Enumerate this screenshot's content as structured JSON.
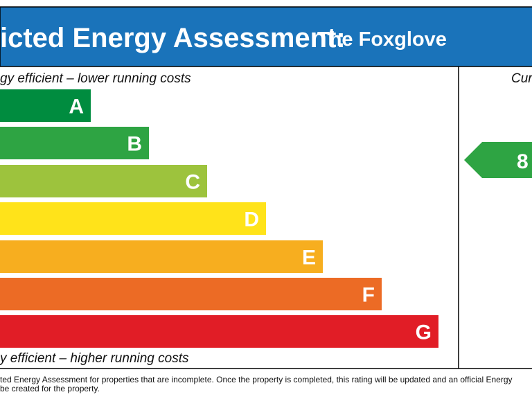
{
  "header": {
    "title": "icted Energy Assessment:",
    "subtitle": "The Foxglove"
  },
  "top_caption": "gy efficient – lower running costs",
  "bottom_caption": "y efficient – higher running costs",
  "bands": [
    {
      "label": "A",
      "color": "#008c3f"
    },
    {
      "label": "B",
      "color": "#2ea443"
    },
    {
      "label": "C",
      "color": "#9dc33d"
    },
    {
      "label": "D",
      "color": "#ffe31a"
    },
    {
      "label": "E",
      "color": "#f7ae1f"
    },
    {
      "label": "F",
      "color": "#ec6b25"
    },
    {
      "label": "G",
      "color": "#e11d26"
    }
  ],
  "current": {
    "heading": "Cur",
    "rating": "8",
    "color": "#2ea443"
  },
  "footer": [
    "ted Energy Assessment for properties that are incomplete. Once the property is completed, this rating will be updated and an official Energy",
    "be created for the property."
  ]
}
